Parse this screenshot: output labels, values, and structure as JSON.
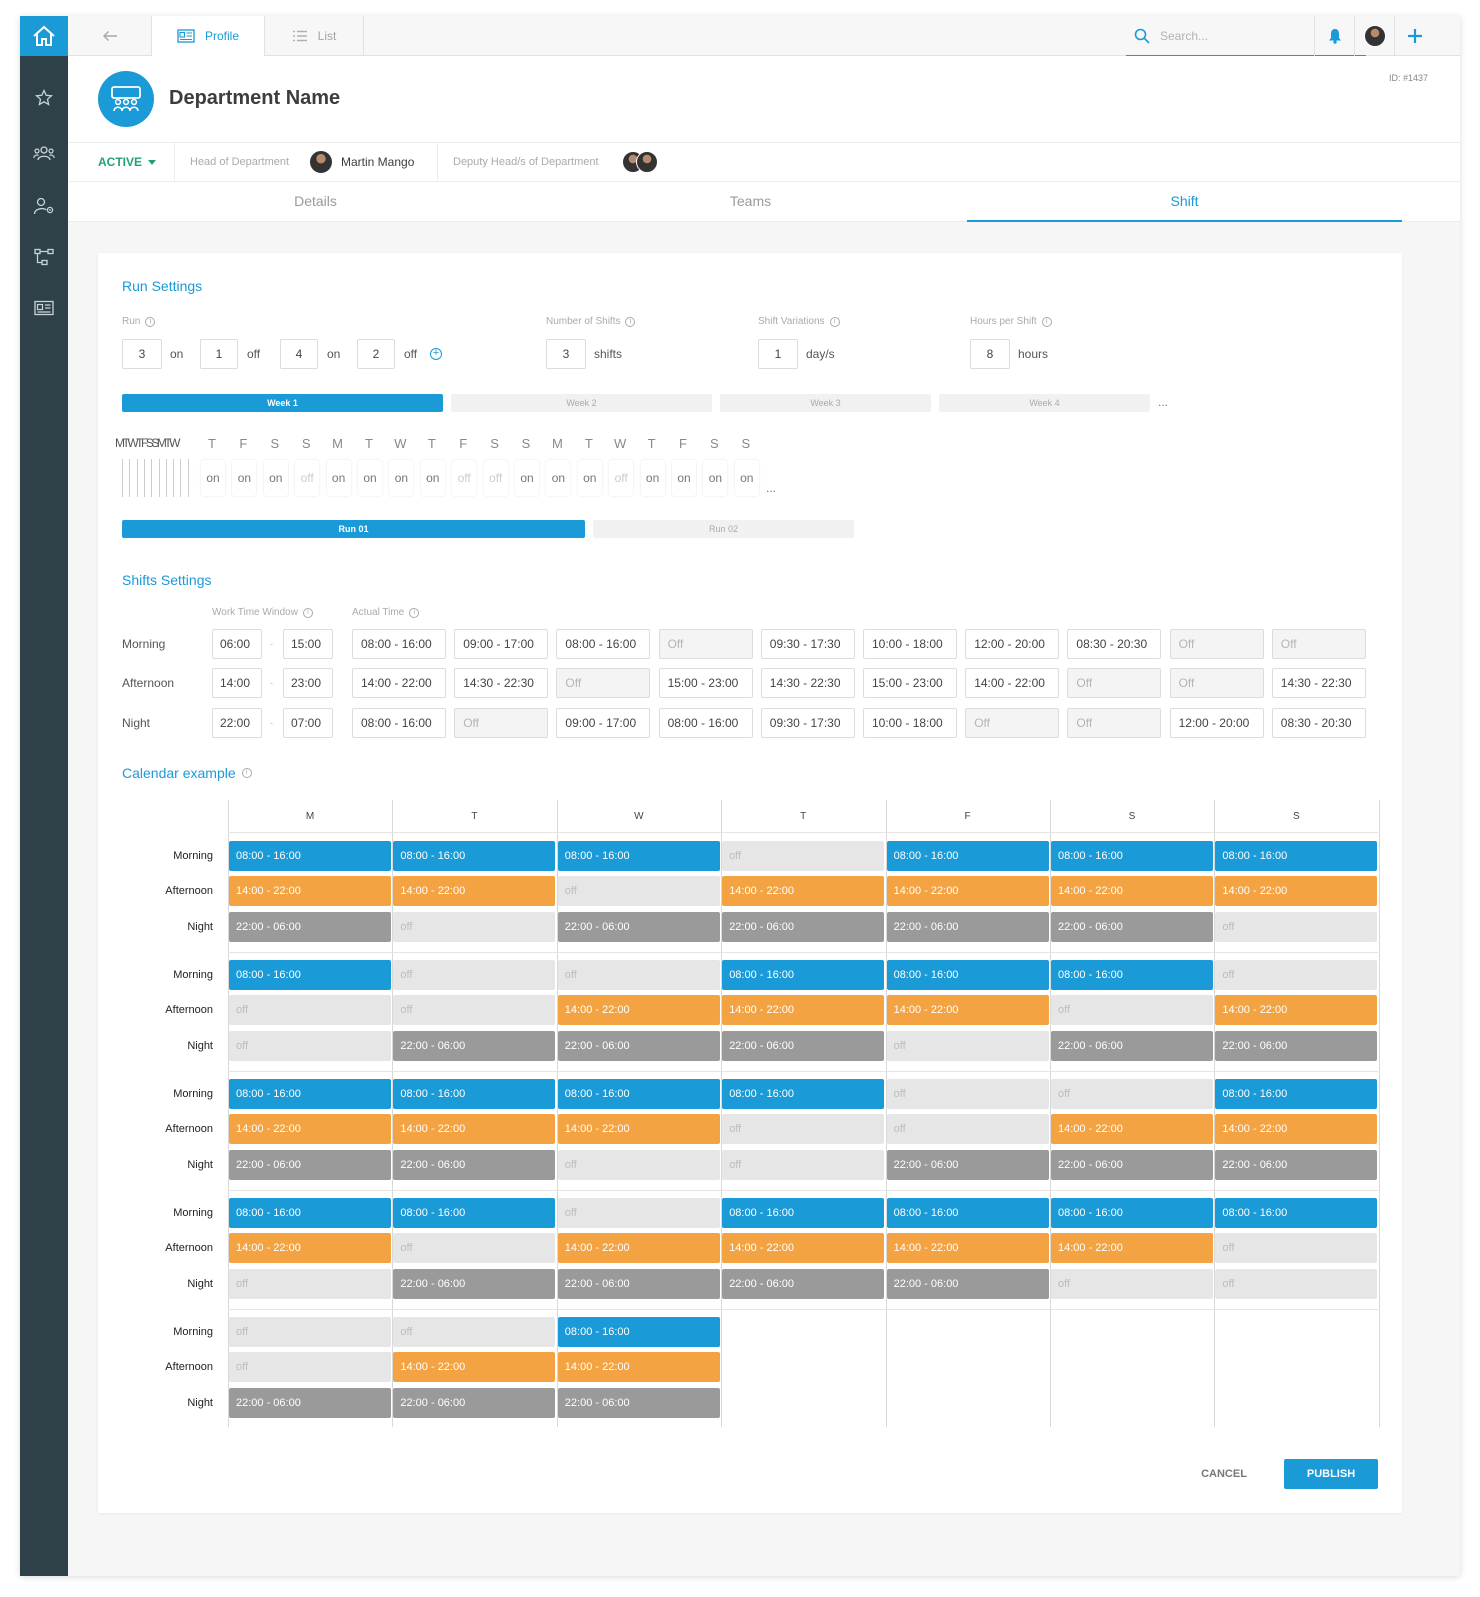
{
  "colors": {
    "accent": "#1a9ad6",
    "sidebar": "#2e4148",
    "status_active": "#23a07a",
    "morning": "#1a9ad6",
    "afternoon": "#f4a342",
    "night": "#9a9a9a",
    "off": "#e6e6e6"
  },
  "sidebar": {
    "items": [
      {
        "icon": "home-icon"
      },
      {
        "icon": "star-icon"
      },
      {
        "icon": "users-icon"
      },
      {
        "icon": "user-settings-icon"
      },
      {
        "icon": "hierarchy-icon"
      },
      {
        "icon": "id-card-icon"
      }
    ]
  },
  "topbar": {
    "tabs": [
      {
        "label": "Profile",
        "icon": "id-card-icon",
        "active": true
      },
      {
        "label": "List",
        "icon": "list-icon",
        "active": false
      }
    ],
    "search_placeholder": "Search..."
  },
  "header": {
    "title": "Department Name",
    "id": "ID: #1437",
    "status": "ACTIVE",
    "head_label": "Head of Department",
    "head_name": "Martin Mango",
    "deputy_label": "Deputy Head/s of Department"
  },
  "subtabs": [
    "Details",
    "Teams",
    "Shift"
  ],
  "run_settings": {
    "title": "Run Settings",
    "run_label": "Run",
    "run": [
      {
        "value": "3",
        "unit": "on"
      },
      {
        "value": "1",
        "unit": "off"
      },
      {
        "value": "4",
        "unit": "on"
      },
      {
        "value": "2",
        "unit": "off"
      }
    ],
    "num_shifts_label": "Number of Shifts",
    "num_shifts": "3",
    "num_shifts_unit": "shifts",
    "variations_label": "Shift Variations",
    "variations": "1",
    "variations_unit": "day/s",
    "hours_label": "Hours per Shift",
    "hours": "8",
    "hours_unit": "hours",
    "weeks": [
      "Week 1",
      "Week 2",
      "Week 3",
      "Week 4"
    ],
    "ellipsis": "...",
    "squashed_days": "MTWTFSSMTW",
    "day_letters": [
      "T",
      "F",
      "S",
      "S",
      "M",
      "T",
      "W",
      "T",
      "F",
      "S",
      "S",
      "M",
      "T",
      "W",
      "T",
      "F",
      "S",
      "S"
    ],
    "day_states": [
      "on",
      "on",
      "on",
      "off",
      "on",
      "on",
      "on",
      "on",
      "off",
      "off",
      "on",
      "on",
      "on",
      "off",
      "on",
      "on",
      "on",
      "on"
    ],
    "runs": [
      "Run 01",
      "Run 02"
    ]
  },
  "shift_settings": {
    "title": "Shifts Settings",
    "window_label": "Work Time Window",
    "actual_label": "Actual Time",
    "rows": [
      {
        "label": "Morning",
        "from": "06:00",
        "to": "15:00",
        "times": [
          "08:00 - 16:00",
          "09:00 - 17:00",
          "08:00 - 16:00",
          "Off",
          "09:30 - 17:30",
          "10:00 - 18:00",
          "12:00 - 20:00",
          "08:30 - 20:30",
          "Off",
          "Off"
        ]
      },
      {
        "label": "Afternoon",
        "from": "14:00",
        "to": "23:00",
        "times": [
          "14:00 - 22:00",
          "14:30 - 22:30",
          "Off",
          "15:00 - 23:00",
          "14:30 - 22:30",
          "15:00 - 23:00",
          "14:00 - 22:00",
          "Off",
          "Off",
          "14:30 - 22:30"
        ]
      },
      {
        "label": "Night",
        "from": "22:00",
        "to": "07:00",
        "times": [
          "08:00 - 16:00",
          "Off",
          "09:00 - 17:00",
          "08:00 - 16:00",
          "09:30 - 17:30",
          "10:00 - 18:00",
          "Off",
          "Off",
          "12:00 - 20:00",
          "08:30 - 20:30"
        ]
      }
    ]
  },
  "calendar": {
    "title": "Calendar example",
    "days": [
      "M",
      "T",
      "W",
      "T",
      "F",
      "S",
      "S"
    ],
    "shift_labels": [
      "Morning",
      "Afternoon",
      "Night"
    ],
    "times": {
      "m": "08:00 - 16:00",
      "a": "14:00 - 22:00",
      "n": "22:00 - 06:00",
      "o": "off"
    },
    "weeks": [
      [
        [
          "m",
          "m",
          "m",
          "o",
          "m",
          "m",
          "m"
        ],
        [
          "a",
          "a",
          "o",
          "a",
          "a",
          "a",
          "a"
        ],
        [
          "n",
          "o",
          "n",
          "n",
          "n",
          "n",
          "o"
        ]
      ],
      [
        [
          "m",
          "o",
          "o",
          "m",
          "m",
          "m",
          "o"
        ],
        [
          "o",
          "o",
          "a",
          "a",
          "a",
          "o",
          "a"
        ],
        [
          "o",
          "n",
          "n",
          "n",
          "o",
          "n",
          "n"
        ]
      ],
      [
        [
          "m",
          "m",
          "m",
          "m",
          "o",
          "o",
          "m"
        ],
        [
          "a",
          "a",
          "a",
          "o",
          "o",
          "a",
          "a"
        ],
        [
          "n",
          "n",
          "o",
          "o",
          "n",
          "n",
          "n"
        ]
      ],
      [
        [
          "m",
          "m",
          "o",
          "m",
          "m",
          "m",
          "m"
        ],
        [
          "a",
          "o",
          "a",
          "a",
          "a",
          "a",
          "o"
        ],
        [
          "o",
          "n",
          "n",
          "n",
          "n",
          "o",
          "o"
        ]
      ],
      [
        [
          "o",
          "o",
          "m"
        ],
        [
          "o",
          "a",
          "a"
        ],
        [
          "n",
          "n",
          "n"
        ]
      ]
    ]
  },
  "actions": {
    "cancel": "CANCEL",
    "publish": "PUBLISH"
  }
}
